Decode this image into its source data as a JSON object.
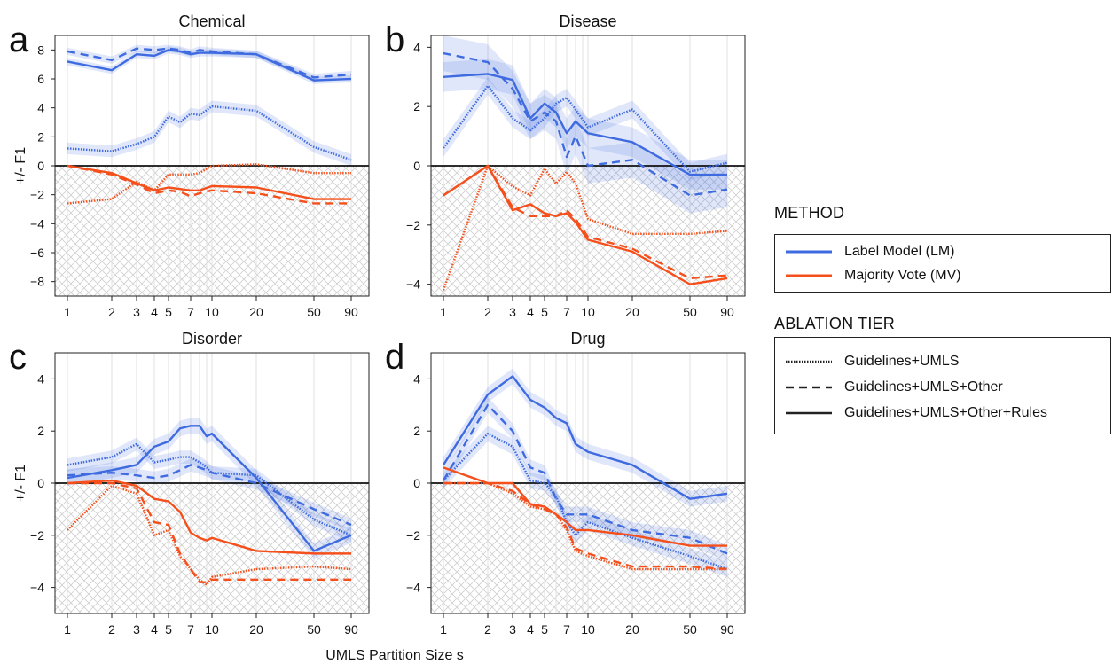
{
  "chart_data": {
    "type": "line",
    "x_ticks": [
      1,
      2,
      3,
      4,
      5,
      7,
      10,
      20,
      50,
      90
    ],
    "xlabel": "UMLS Partition Size s",
    "ylabel": "+/- F1",
    "colors": {
      "LM": "#3f6be0",
      "MV": "#f5501c"
    },
    "panels": [
      {
        "letter": "a",
        "title": "Chemical",
        "yticks": [
          -8,
          -6,
          -4,
          -2,
          0,
          2,
          4,
          6,
          8
        ],
        "ylim": [
          -9,
          9
        ],
        "x": [
          1,
          2,
          3,
          4,
          5,
          6,
          7,
          8,
          10,
          20,
          50,
          90
        ],
        "series": [
          {
            "method": "LM",
            "tier": "Guidelines+UMLS",
            "values": [
              1.2,
              1.0,
              1.5,
              2.0,
              3.4,
              3.0,
              3.6,
              3.5,
              4.1,
              3.8,
              1.3,
              0.4
            ],
            "band": 0.4
          },
          {
            "method": "LM",
            "tier": "Guidelines+UMLS+Other",
            "values": [
              7.9,
              7.3,
              8.1,
              8.0,
              8.1,
              8.0,
              7.8,
              8.0,
              7.9,
              7.7,
              6.1,
              6.3
            ],
            "band": 0.25
          },
          {
            "method": "LM",
            "tier": "Guidelines+UMLS+Other+Rules",
            "values": [
              7.2,
              6.6,
              7.7,
              7.6,
              8.0,
              7.9,
              7.7,
              7.8,
              7.8,
              7.7,
              5.9,
              6.0
            ],
            "band": 0.25
          },
          {
            "method": "MV",
            "tier": "Guidelines+UMLS",
            "values": [
              -2.6,
              -2.3,
              -1.1,
              -1.7,
              -0.6,
              -0.6,
              -0.6,
              -0.5,
              0.0,
              0.1,
              -0.5,
              -0.5
            ]
          },
          {
            "method": "MV",
            "tier": "Guidelines+UMLS+Other",
            "values": [
              0.0,
              -0.6,
              -1.3,
              -1.9,
              -1.7,
              -1.8,
              -2.1,
              -1.9,
              -1.7,
              -1.9,
              -2.6,
              -2.6
            ]
          },
          {
            "method": "MV",
            "tier": "Guidelines+UMLS+Other+Rules",
            "values": [
              0.0,
              -0.5,
              -1.2,
              -1.7,
              -1.5,
              -1.6,
              -1.7,
              -1.7,
              -1.4,
              -1.5,
              -2.3,
              -2.3
            ]
          }
        ]
      },
      {
        "letter": "b",
        "title": "Disease",
        "yticks": [
          -4,
          -2,
          0,
          2,
          4
        ],
        "ylim": [
          -4.4,
          4.4
        ],
        "x": [
          1,
          2,
          3,
          4,
          5,
          6,
          7,
          8,
          10,
          20,
          50,
          90
        ],
        "series": [
          {
            "method": "LM",
            "tier": "Guidelines+UMLS",
            "values": [
              0.6,
              2.7,
              1.6,
              1.2,
              1.6,
              2.1,
              2.3,
              1.9,
              1.3,
              1.9,
              -0.2,
              0.1
            ],
            "band": 0.3
          },
          {
            "method": "LM",
            "tier": "Guidelines+UMLS+Other",
            "values": [
              3.8,
              3.5,
              2.6,
              1.5,
              1.8,
              1.5,
              0.3,
              1.0,
              0.0,
              0.2,
              -1.0,
              -0.8
            ],
            "band": 0.6
          },
          {
            "method": "LM",
            "tier": "Guidelines+UMLS+Other+Rules",
            "values": [
              3.0,
              3.1,
              2.9,
              1.6,
              2.1,
              1.8,
              1.1,
              1.5,
              1.1,
              0.8,
              -0.3,
              -0.3
            ],
            "band": 0.5
          },
          {
            "method": "MV",
            "tier": "Guidelines+UMLS",
            "values": [
              -4.2,
              0.0,
              -0.7,
              -1.0,
              -0.1,
              -0.6,
              -0.2,
              -0.6,
              -1.8,
              -2.3,
              -2.3,
              -2.2
            ]
          },
          {
            "method": "MV",
            "tier": "Guidelines+UMLS+Other",
            "values": [
              -1.0,
              0.0,
              -1.4,
              -1.7,
              -1.7,
              -1.7,
              -1.5,
              -1.8,
              -2.4,
              -2.8,
              -3.8,
              -3.7
            ]
          },
          {
            "method": "MV",
            "tier": "Guidelines+UMLS+Other+Rules",
            "values": [
              -1.0,
              0.0,
              -1.5,
              -1.3,
              -1.6,
              -1.7,
              -1.6,
              -1.9,
              -2.5,
              -2.9,
              -4.0,
              -3.8
            ]
          }
        ]
      },
      {
        "letter": "c",
        "title": "Disorder",
        "yticks": [
          -4,
          -2,
          0,
          2,
          4
        ],
        "ylim": [
          -5,
          5
        ],
        "x": [
          1,
          2,
          3,
          4,
          5,
          6,
          7,
          8,
          9,
          10,
          20,
          50,
          90
        ],
        "series": [
          {
            "method": "LM",
            "tier": "Guidelines+UMLS",
            "values": [
              0.7,
              1.0,
              1.5,
              0.8,
              0.9,
              1.0,
              1.0,
              0.8,
              0.6,
              0.4,
              0.3,
              -1.4,
              -2.0
            ],
            "band": 0.25
          },
          {
            "method": "LM",
            "tier": "Guidelines+UMLS+Other",
            "values": [
              0.3,
              0.4,
              0.3,
              0.2,
              0.3,
              0.5,
              0.7,
              0.6,
              0.5,
              0.4,
              0.0,
              -1.0,
              -1.6
            ],
            "band": 0.25
          },
          {
            "method": "LM",
            "tier": "Guidelines+UMLS+Other+Rules",
            "values": [
              0.2,
              0.5,
              0.7,
              1.4,
              1.6,
              2.1,
              2.2,
              2.2,
              1.8,
              1.9,
              0.2,
              -2.6,
              -2.0
            ],
            "band": 0.3
          },
          {
            "method": "MV",
            "tier": "Guidelines+UMLS",
            "values": [
              -1.8,
              -0.1,
              -0.4,
              -2.0,
              -1.8,
              -2.8,
              -3.3,
              -3.7,
              -3.9,
              -3.6,
              -3.3,
              -3.2,
              -3.3
            ]
          },
          {
            "method": "MV",
            "tier": "Guidelines+UMLS+Other",
            "values": [
              0.0,
              0.0,
              -0.2,
              -1.5,
              -1.6,
              -2.7,
              -3.3,
              -3.8,
              -3.8,
              -3.7,
              -3.7,
              -3.7,
              -3.7
            ]
          },
          {
            "method": "MV",
            "tier": "Guidelines+UMLS+Other+Rules",
            "values": [
              0.0,
              0.1,
              -0.1,
              -0.6,
              -0.7,
              -1.1,
              -1.9,
              -2.1,
              -2.2,
              -2.1,
              -2.6,
              -2.7,
              -2.7
            ]
          }
        ]
      },
      {
        "letter": "d",
        "title": "Drug",
        "yticks": [
          -4,
          -2,
          0,
          2,
          4
        ],
        "ylim": [
          -5,
          5
        ],
        "x": [
          1,
          2,
          3,
          4,
          5,
          6,
          7,
          8,
          10,
          20,
          50,
          90
        ],
        "series": [
          {
            "method": "LM",
            "tier": "Guidelines+UMLS",
            "values": [
              0.1,
              1.9,
              1.4,
              0.1,
              0.0,
              -0.5,
              -1.5,
              -2.0,
              -1.5,
              -2.1,
              -2.8,
              -3.3
            ],
            "band": 0.3
          },
          {
            "method": "LM",
            "tier": "Guidelines+UMLS+Other",
            "values": [
              0.1,
              3.0,
              2.0,
              0.6,
              0.4,
              -0.6,
              -1.2,
              -1.2,
              -1.2,
              -1.8,
              -2.1,
              -2.7
            ],
            "band": 0.3
          },
          {
            "method": "LM",
            "tier": "Guidelines+UMLS+Other+Rules",
            "values": [
              0.7,
              3.4,
              4.1,
              3.2,
              2.9,
              2.5,
              2.3,
              1.5,
              1.2,
              0.7,
              -0.6,
              -0.4
            ],
            "band": 0.3
          },
          {
            "method": "MV",
            "tier": "Guidelines+UMLS",
            "values": [
              0.0,
              0.0,
              -0.4,
              -0.9,
              -1.0,
              -1.2,
              -1.8,
              -2.6,
              -2.8,
              -3.3,
              -3.3,
              -3.3
            ]
          },
          {
            "method": "MV",
            "tier": "Guidelines+UMLS+Other",
            "values": [
              0.0,
              0.0,
              -0.3,
              -0.8,
              -1.0,
              -1.2,
              -1.7,
              -2.5,
              -2.7,
              -3.2,
              -3.2,
              -3.3
            ]
          },
          {
            "method": "MV",
            "tier": "Guidelines+UMLS+Other+Rules",
            "values": [
              0.6,
              0.0,
              0.0,
              -0.8,
              -0.9,
              -1.2,
              -1.5,
              -1.8,
              -1.8,
              -2.0,
              -2.4,
              -2.4
            ]
          }
        ]
      }
    ]
  },
  "legend": {
    "method_heading": "METHOD",
    "method_items": [
      {
        "key": "LM",
        "label": "Label Model (LM)"
      },
      {
        "key": "MV",
        "label": "Majority Vote (MV)"
      }
    ],
    "tier_heading": "ABLATION TIER",
    "tier_items": [
      {
        "style": "dotted",
        "label": "Guidelines+UMLS"
      },
      {
        "style": "dashed",
        "label": "Guidelines+UMLS+Other"
      },
      {
        "style": "solid",
        "label": "Guidelines+UMLS+Other+Rules"
      }
    ]
  }
}
